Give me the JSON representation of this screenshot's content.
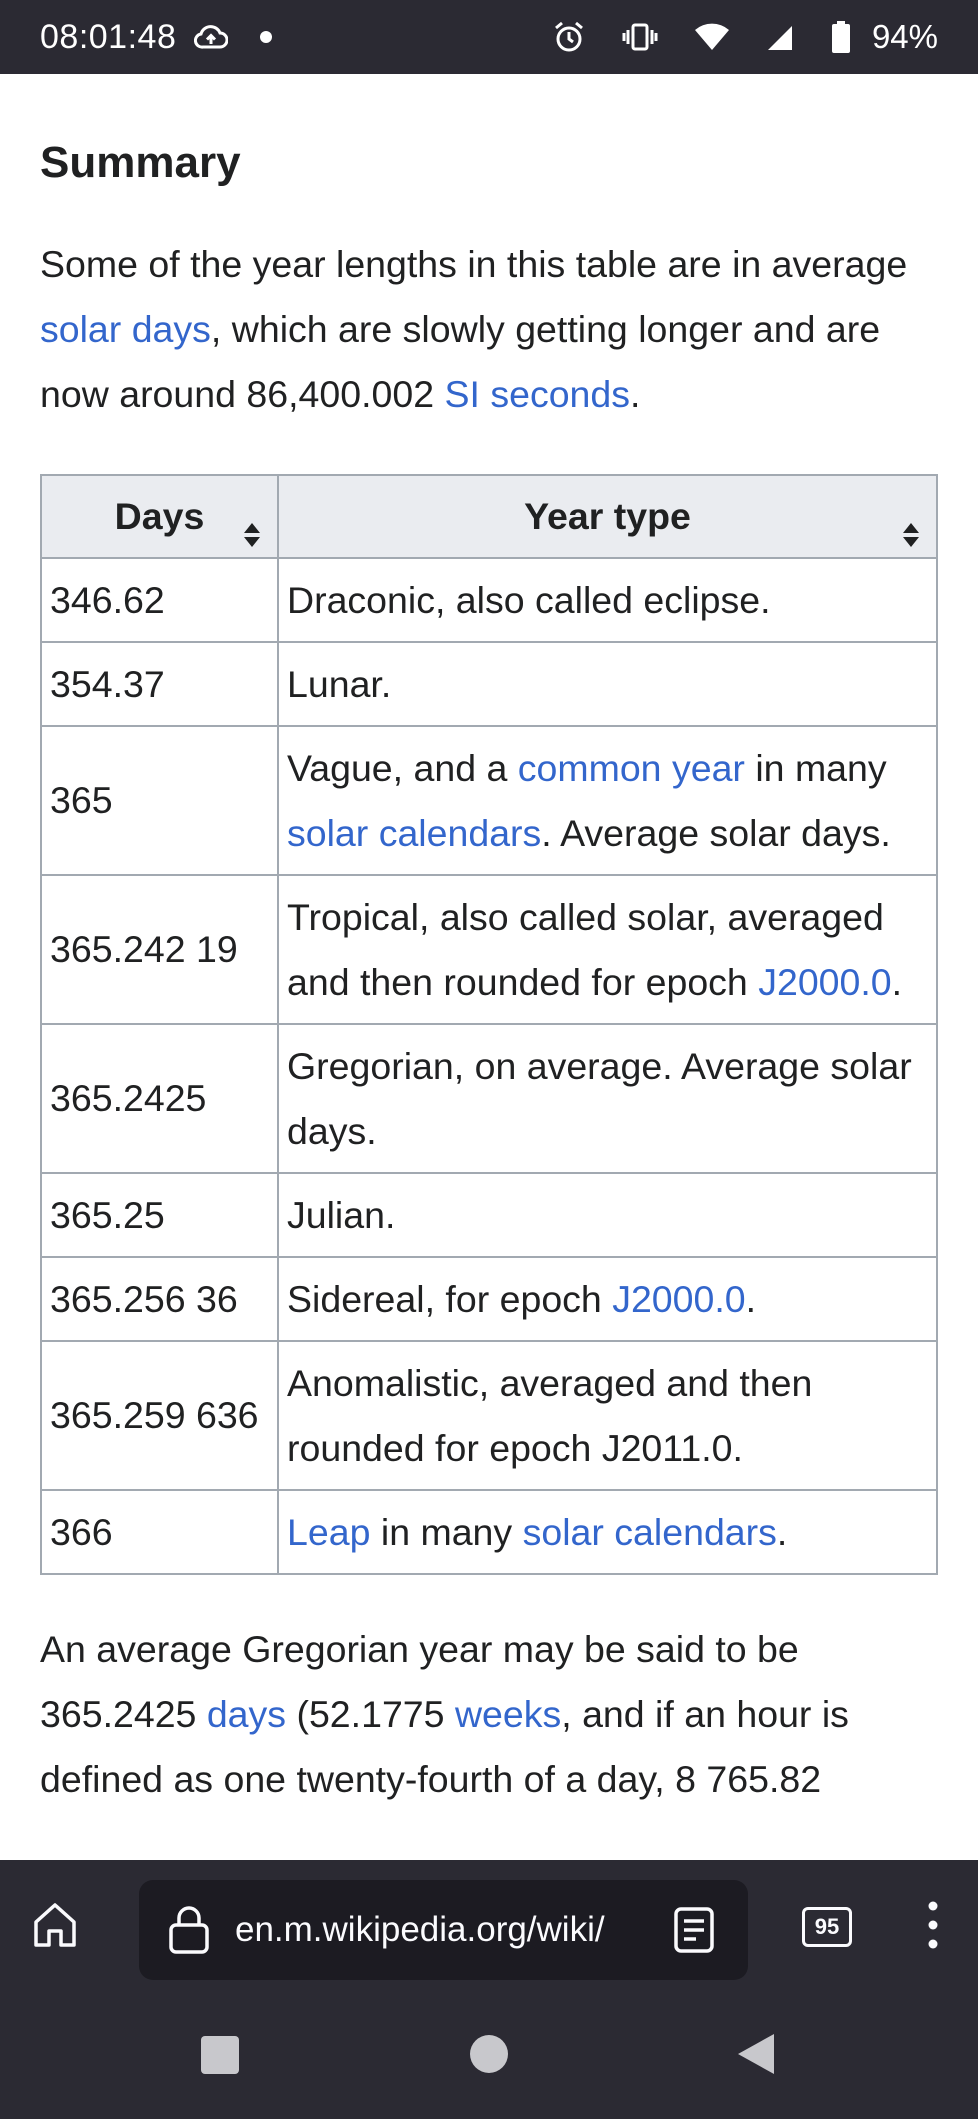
{
  "status_bar": {
    "time": "08:01:48",
    "battery": "94%",
    "icons": [
      "cloud-upload-icon",
      "notification-dot-icon",
      "alarm-icon",
      "vibrate-icon",
      "wifi-icon",
      "signal-icon",
      "battery-icon"
    ]
  },
  "article": {
    "heading": "Summary",
    "intro": {
      "t1": "Some of the year lengths in this table are in average ",
      "link1": "solar days",
      "t2": ", which are slowly getting longer and are now around 86,400.002 ",
      "link2": "SI seconds",
      "t3": "."
    },
    "table": {
      "headers": [
        "Days",
        "Year type"
      ],
      "rows": [
        {
          "days": "346.62",
          "t1": "Draconic, also called eclipse."
        },
        {
          "days": "354.37",
          "t1": "Lunar."
        },
        {
          "days": "365",
          "t1": "Vague, and a ",
          "link1": "common year",
          "t2": " in many ",
          "link2": "solar calendars",
          "t3": ". Average solar days."
        },
        {
          "days": "365.242 19",
          "t1": "Tropical, also called solar, averaged and then rounded for epoch ",
          "link1": "J2000.0",
          "t2": "."
        },
        {
          "days": "365.2425",
          "t1": "Gregorian, on average. Average solar days."
        },
        {
          "days": "365.25",
          "t1": "Julian."
        },
        {
          "days": "365.256 36",
          "t1": "Sidereal, for epoch ",
          "link1": "J2000.0",
          "t2": "."
        },
        {
          "days": "365.259 636",
          "t1": "Anomalistic, averaged and then rounded for epoch J2011.0."
        },
        {
          "days": "366",
          "link1": "Leap",
          "t2": " in many ",
          "link2": "solar calendars",
          "t3": "."
        }
      ]
    },
    "outro": {
      "t1": "An average Gregorian year may be said to be 365.2425 ",
      "link1": "days",
      "t2": " (52.1775 ",
      "link2": "weeks",
      "t3": ", and if an hour is defined as one twenty-fourth of a day, 8 765.82"
    }
  },
  "toolbar": {
    "url": "en.m.wikipedia.org/wiki/",
    "tab_count": "95",
    "icons": [
      "home-icon",
      "lock-icon",
      "reader-mode-icon",
      "tabs-icon",
      "more-menu-icon"
    ]
  },
  "navbar": {
    "icons": [
      "recent-apps-icon",
      "home-nav-icon",
      "back-icon"
    ]
  },
  "colors": {
    "link": "#3366cc",
    "text": "#202122",
    "table_header_bg": "#eaecf0",
    "table_border": "#a2a9b1",
    "chrome_bg": "#2b2a33",
    "url_bg": "#1c1b22"
  }
}
